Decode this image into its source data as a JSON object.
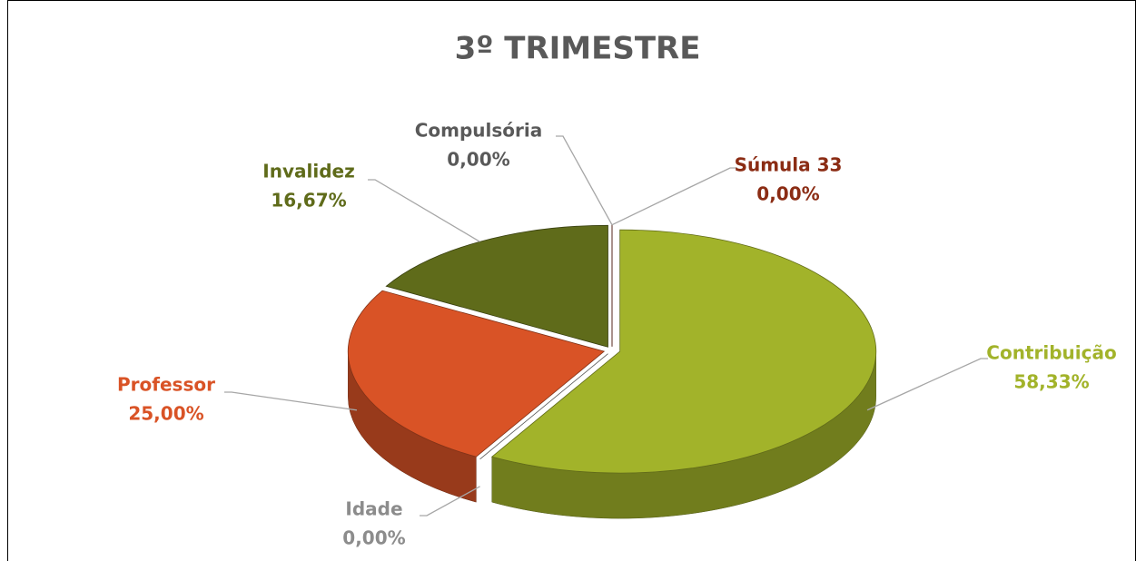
{
  "chart_data": {
    "type": "pie",
    "title": "3º TRIMESTRE",
    "categories": [
      "Contribuição",
      "Idade",
      "Professor",
      "Invalidez",
      "Compulsória",
      "Súmula 33"
    ],
    "values": [
      58.33,
      0,
      25,
      16.67,
      0,
      0
    ],
    "value_labels": [
      "58,33%",
      "0,00%",
      "25,00%",
      "16,67%",
      "0,00%",
      "0,00%"
    ],
    "colors": [
      "#a2b32a",
      "#8c8c8c",
      "#d95326",
      "#5f6b1a",
      "#595959",
      "#8b2c14"
    ]
  }
}
